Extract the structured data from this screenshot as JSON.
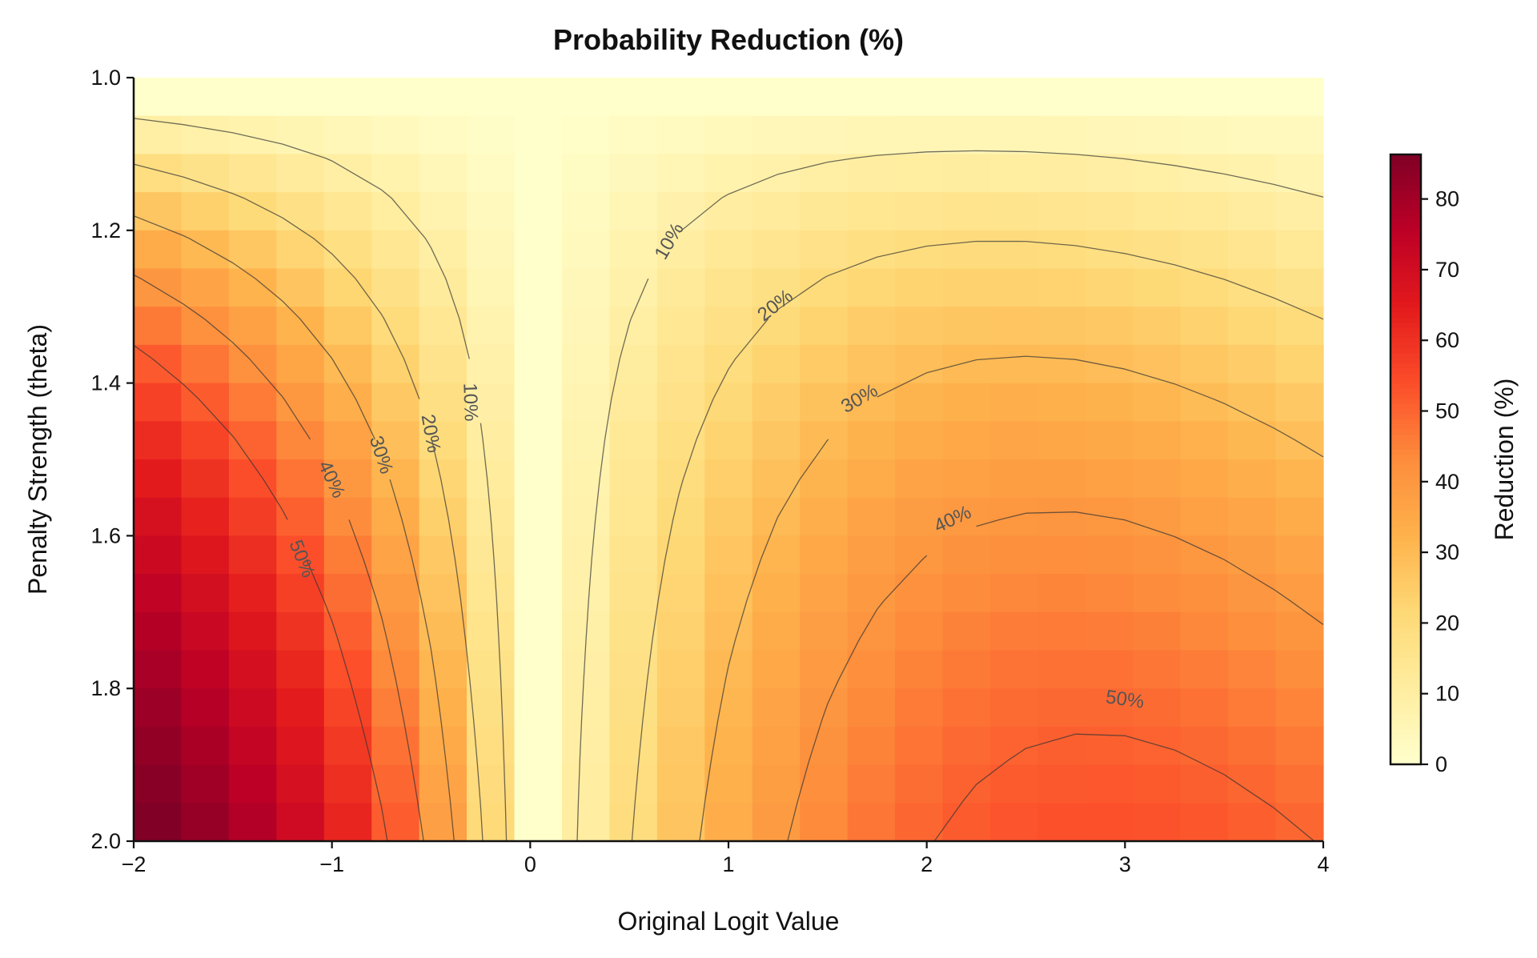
{
  "chart_data": {
    "type": "heatmap",
    "title": "Probability Reduction (%)",
    "xlabel": "Original Logit Value",
    "ylabel": "Penalty Strength (theta)",
    "xlim": [
      -2,
      4
    ],
    "ylim": [
      2.0,
      1.0
    ],
    "x_ticks": [
      "−2",
      "−1",
      "0",
      "1",
      "2",
      "3",
      "4"
    ],
    "x_tick_values": [
      -2,
      -1,
      0,
      1,
      2,
      3,
      4
    ],
    "y_ticks": [
      "1.0",
      "1.2",
      "1.4",
      "1.6",
      "1.8",
      "2.0"
    ],
    "y_tick_values": [
      1.0,
      1.2,
      1.4,
      1.6,
      1.8,
      2.0
    ],
    "x_values": [
      -2,
      -1.75,
      -1.5,
      -1.25,
      -1,
      -0.75,
      -0.5,
      -0.25,
      0,
      0.25,
      0.5,
      0.75,
      1,
      1.25,
      1.5,
      1.75,
      2,
      2.25,
      2.5,
      2.75,
      3,
      3.25,
      3.5,
      3.75,
      4
    ],
    "theta_values_count": 20,
    "theta_range": [
      1.0,
      2.0
    ],
    "colormap": "YlOrRd",
    "colormap_colors": [
      "#ffffcc",
      "#ffeda0",
      "#fed976",
      "#feb24c",
      "#fd8d3c",
      "#fc4e2a",
      "#e31a1c",
      "#bd0026",
      "#800026"
    ],
    "value_range": [
      0,
      86.3
    ],
    "contour_levels": [
      10,
      20,
      30,
      40,
      50
    ],
    "contour_labels": [
      "10%",
      "20%",
      "30%",
      "40%",
      "50%"
    ],
    "colorbar": {
      "label": "Reduction (%)",
      "ticks": [
        "0",
        "10",
        "20",
        "30",
        "40",
        "50",
        "60",
        "70",
        "80"
      ],
      "tick_values": [
        0,
        10,
        20,
        30,
        40,
        50,
        60,
        70,
        80
      ]
    },
    "grid": false
  }
}
